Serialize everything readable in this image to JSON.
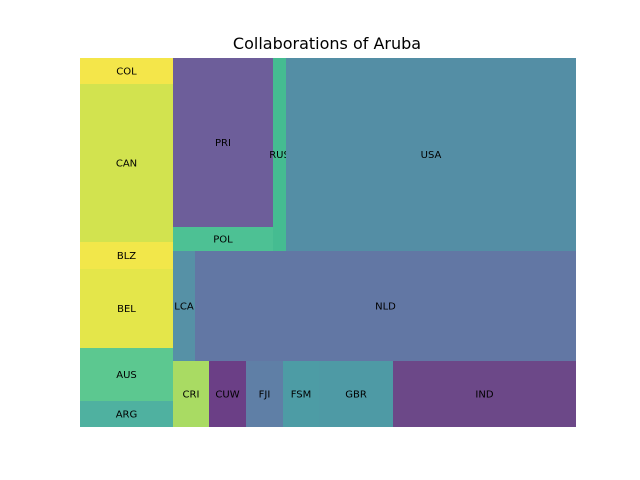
{
  "chart_data": {
    "type": "treemap",
    "title": "Collaborations of Aruba",
    "cells": [
      {
        "label": "COL",
        "color": "#f4e64a"
      },
      {
        "label": "CAN",
        "color": "#d2e34f"
      },
      {
        "label": "BLZ",
        "color": "#f2e74a"
      },
      {
        "label": "BEL",
        "color": "#e4e64a"
      },
      {
        "label": "AUS",
        "color": "#5cc890"
      },
      {
        "label": "ARG",
        "color": "#4fb1a0"
      },
      {
        "label": "PRI",
        "color": "#6d5e9a"
      },
      {
        "label": "POL",
        "color": "#4dc194"
      },
      {
        "label": "RUS",
        "color": "#45bc91"
      },
      {
        "label": "USA",
        "color": "#548ea5"
      },
      {
        "label": "LCA",
        "color": "#5691a6"
      },
      {
        "label": "NLD",
        "color": "#6277a4"
      },
      {
        "label": "CRI",
        "color": "#a9db63"
      },
      {
        "label": "CUW",
        "color": "#6b3f86"
      },
      {
        "label": "FJI",
        "color": "#5f7fa6"
      },
      {
        "label": "FSM",
        "color": "#4d9ca5"
      },
      {
        "label": "GBR",
        "color": "#4e9aa5"
      },
      {
        "label": "IND",
        "color": "#6c4888"
      }
    ]
  }
}
